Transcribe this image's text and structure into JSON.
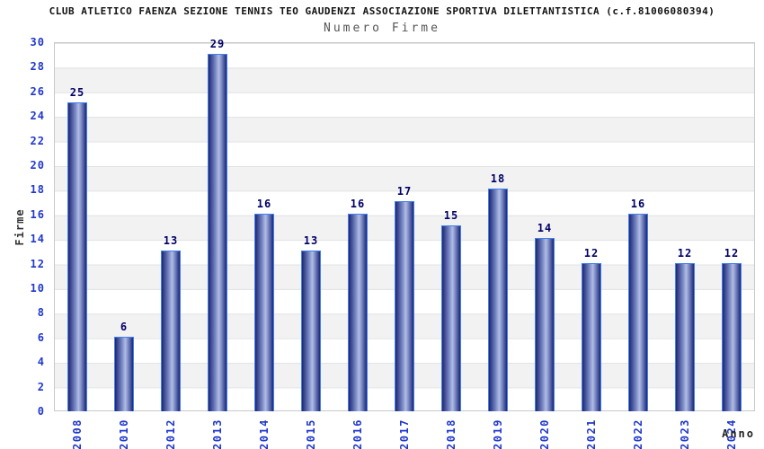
{
  "chart_data": {
    "type": "bar",
    "title": "CLUB ATLETICO FAENZA SEZIONE TENNIS TEO GAUDENZI ASSOCIAZIONE SPORTIVA DILETTANTISTICA (c.f.81006080394)",
    "subtitle": "Numero Firme",
    "categories": [
      "2008",
      "2010",
      "2012",
      "2013",
      "2014",
      "2015",
      "2016",
      "2017",
      "2018",
      "2019",
      "2020",
      "2021",
      "2022",
      "2023",
      "2024"
    ],
    "values": [
      25,
      6,
      13,
      29,
      16,
      13,
      16,
      17,
      15,
      18,
      14,
      12,
      16,
      12,
      12
    ],
    "xlabel": "Anno",
    "ylabel": "Firme",
    "ylim": [
      0,
      30
    ],
    "ytick_step": 2,
    "grid": "horizontal-bands",
    "legend": "none",
    "colors": {
      "title": "#111111",
      "subtitle": "#555555",
      "tick_label": "#2038cc",
      "value_label": "#000066",
      "axis_title": "#333333",
      "axis_title_x": "#222222",
      "bar_edge": "#4080f0",
      "bar_dark": "#1e2673",
      "bar_mid": "#7c8cc8",
      "bar_light": "#b3bde2",
      "band_gray": "#f2f2f2",
      "gridline": "#e2e2e2",
      "plot_border": "#c9c9c9",
      "background": "#ffffff"
    }
  }
}
